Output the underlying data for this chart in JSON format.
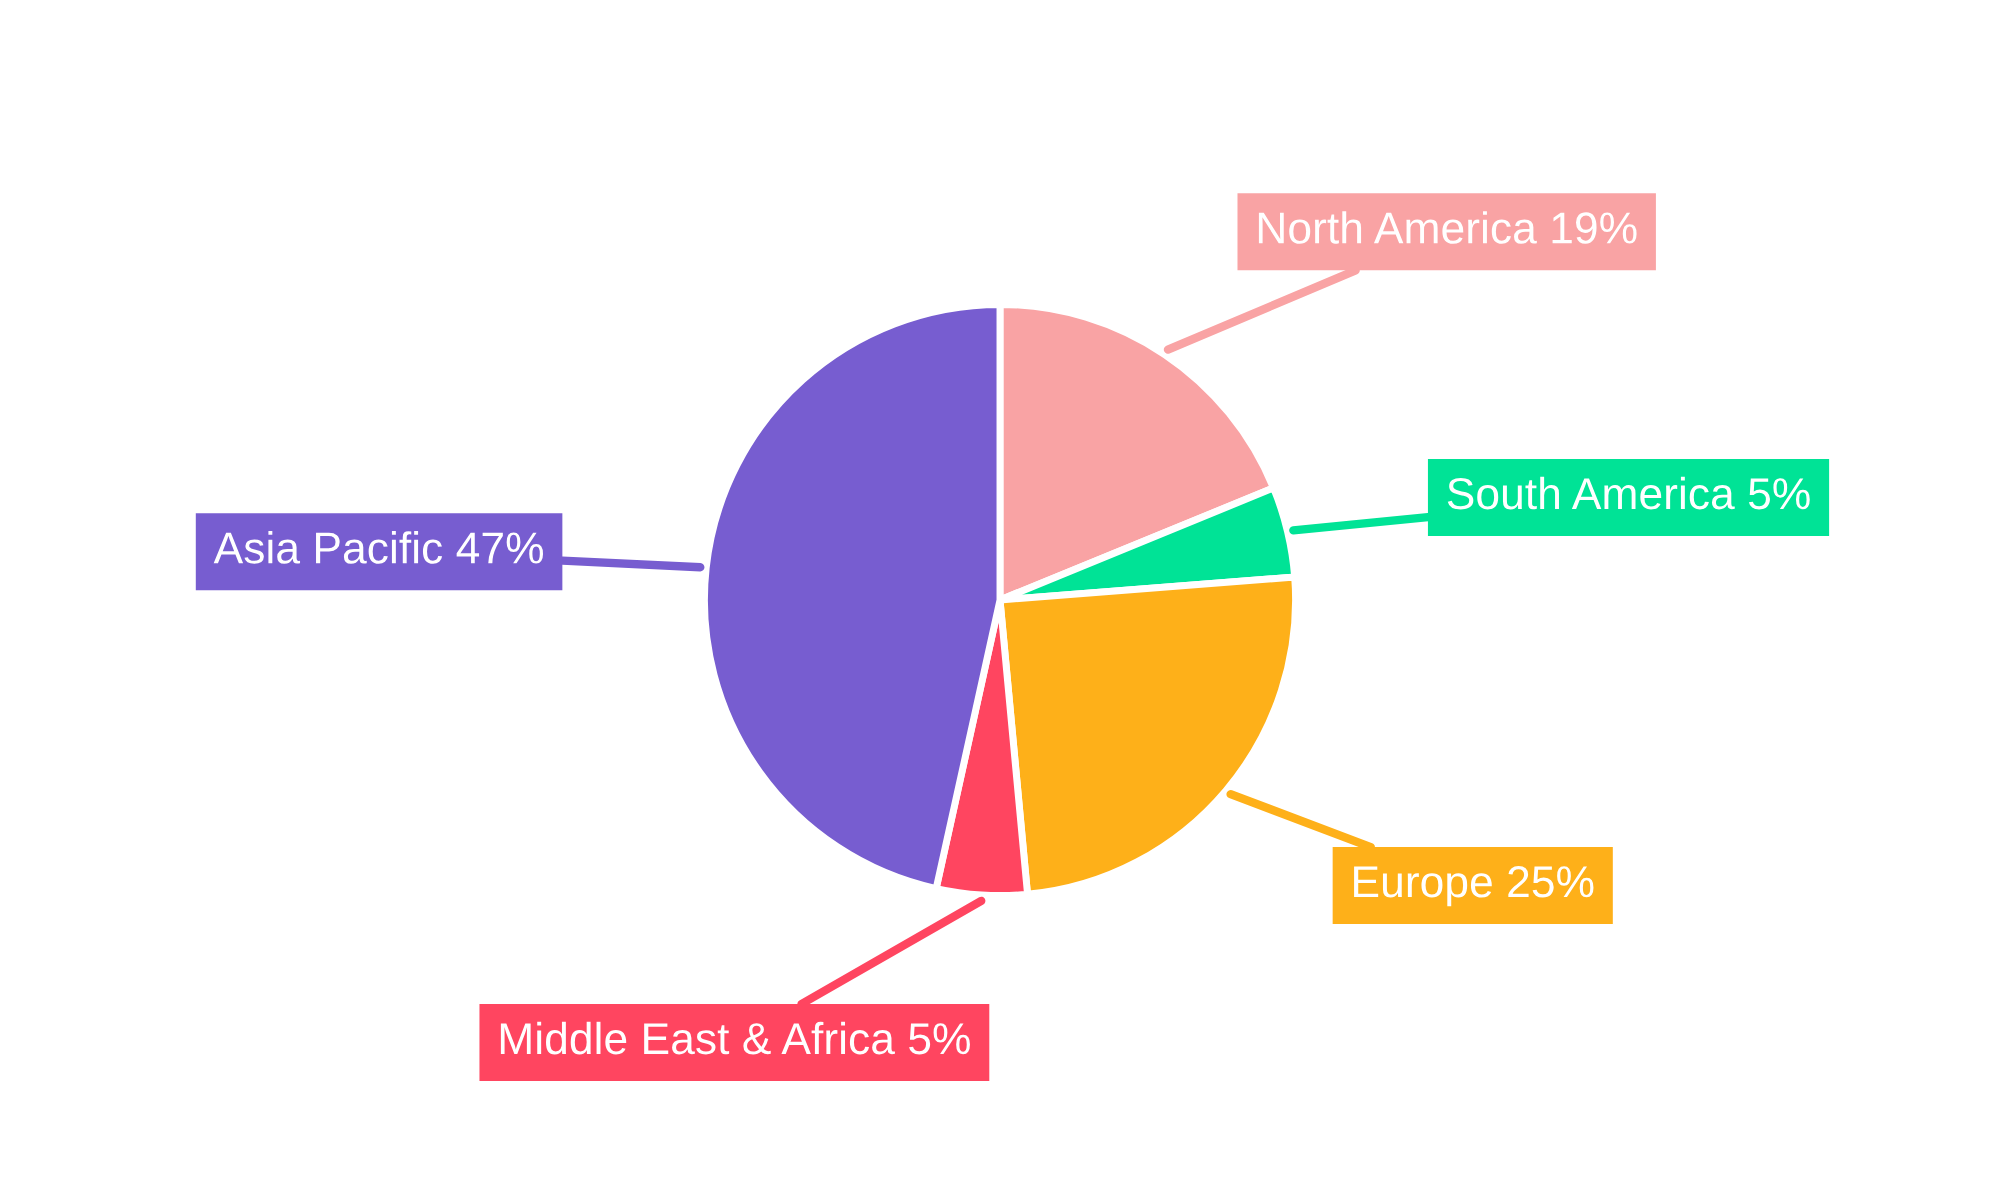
{
  "chart_data": {
    "type": "pie",
    "categories": [
      "North America",
      "South America",
      "Europe",
      "Middle East & Africa",
      "Asia Pacific"
    ],
    "values": [
      19,
      5,
      25,
      5,
      47
    ],
    "value_labels": [
      "19%",
      "5%",
      "25%",
      "5%",
      "47%"
    ],
    "colors": [
      "#f9a3a4",
      "#00e396",
      "#feb019",
      "#ff4560",
      "#775dd0"
    ],
    "legend": false
  }
}
